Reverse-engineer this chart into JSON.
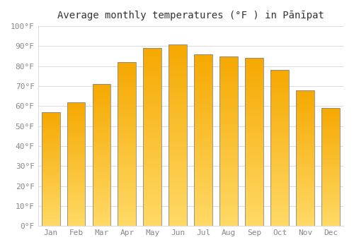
{
  "title": "Average monthly temperatures (°F ) in Pānīpat",
  "months": [
    "Jan",
    "Feb",
    "Mar",
    "Apr",
    "May",
    "Jun",
    "Jul",
    "Aug",
    "Sep",
    "Oct",
    "Nov",
    "Dec"
  ],
  "values": [
    57,
    62,
    71,
    82,
    89,
    91,
    86,
    85,
    84,
    78,
    68,
    59
  ],
  "bar_color_top": "#F5A800",
  "bar_color_bottom": "#FFD966",
  "bar_edge_color": "#888888",
  "background_color": "#FFFFFF",
  "grid_color": "#DDDDDD",
  "ylim": [
    0,
    100
  ],
  "yticks": [
    0,
    10,
    20,
    30,
    40,
    50,
    60,
    70,
    80,
    90,
    100
  ],
  "ytick_labels": [
    "0°F",
    "10°F",
    "20°F",
    "30°F",
    "40°F",
    "50°F",
    "60°F",
    "70°F",
    "80°F",
    "90°F",
    "100°F"
  ],
  "tick_color": "#888888",
  "title_fontsize": 10,
  "tick_fontsize": 8,
  "bar_width": 0.72,
  "n_grad": 200
}
